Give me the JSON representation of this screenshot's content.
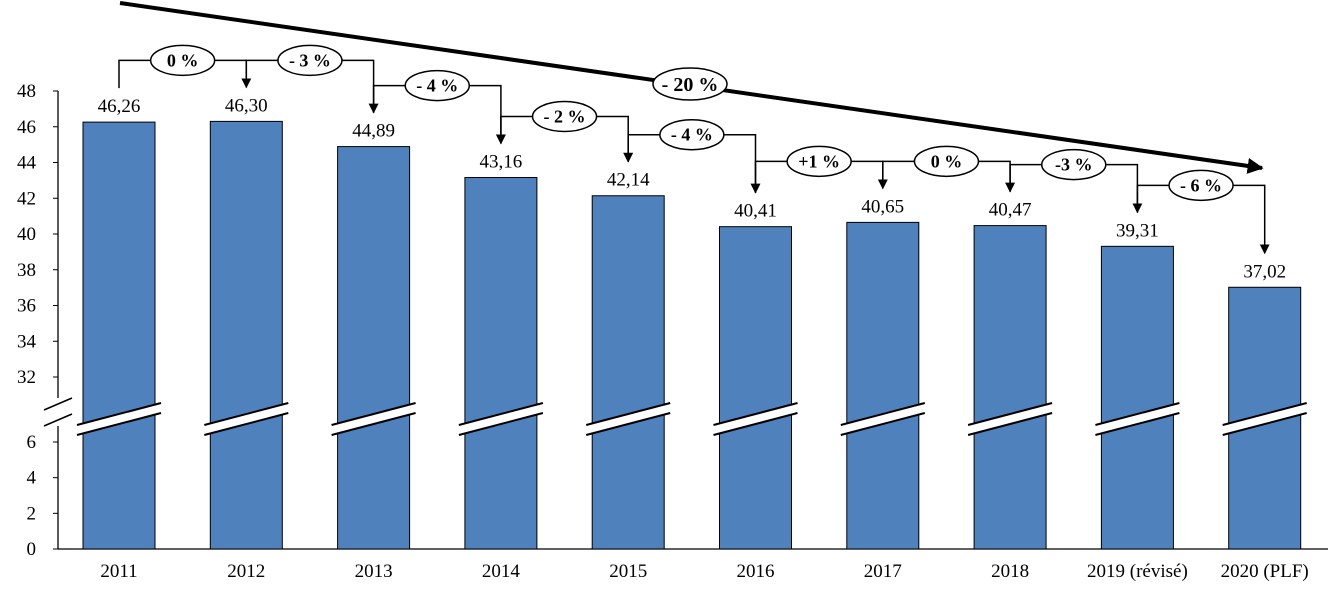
{
  "chart_data": {
    "type": "bar",
    "categories": [
      "2011",
      "2012",
      "2013",
      "2014",
      "2015",
      "2016",
      "2017",
      "2018",
      "2019 (révisé)",
      "2020 (PLF)"
    ],
    "values": [
      46.26,
      46.3,
      44.89,
      43.16,
      42.14,
      40.41,
      40.65,
      40.47,
      39.31,
      37.02
    ],
    "value_labels": [
      "46,26",
      "46,30",
      "44,89",
      "43,16",
      "42,14",
      "40,41",
      "40,65",
      "40,47",
      "39,31",
      "37,02"
    ],
    "changes": [
      "0 %",
      "- 3 %",
      "- 4 %",
      "- 2 %",
      "- 4 %",
      "+1 %",
      "0 %",
      "-3 %",
      "- 6 %"
    ],
    "total_change": "- 20 %",
    "y_ticks_lower": [
      "0",
      "2",
      "4",
      "6"
    ],
    "y_ticks_upper": [
      "32",
      "34",
      "36",
      "38",
      "40",
      "42",
      "44",
      "46",
      "48"
    ],
    "y_axis_break": true,
    "ylim_lower": [
      0,
      6
    ],
    "ylim_upper": [
      32,
      48
    ],
    "bar_color": "#4f81bd",
    "title": "",
    "xlabel": "",
    "ylabel": ""
  }
}
